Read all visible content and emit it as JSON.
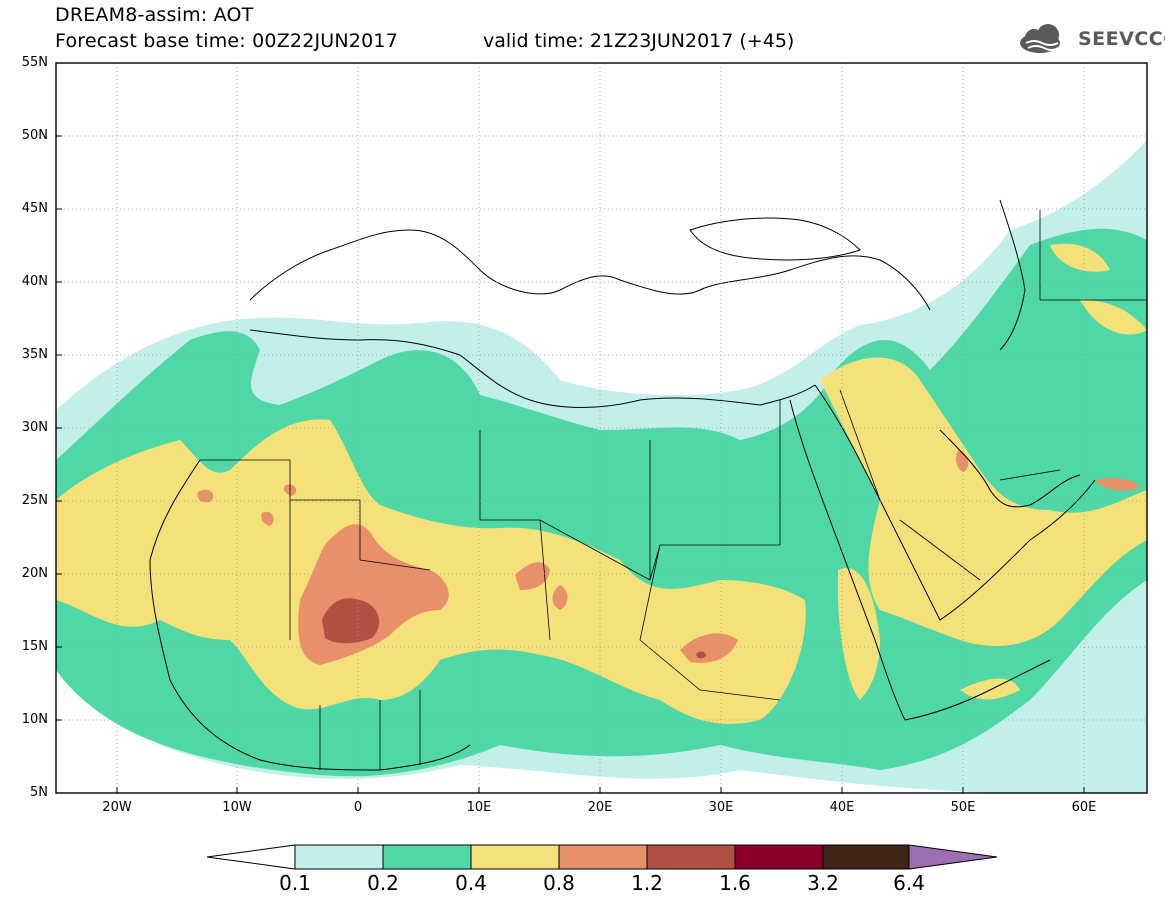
{
  "header": {
    "line1": "DREAM8-assim: AOT",
    "line2": "Forecast base time: 00Z22JUN2017",
    "valid": "valid time: 21Z23JUN2017 (+45)",
    "logo_text": "SEEVCCC"
  },
  "map": {
    "lon_range": [
      -25,
      65
    ],
    "lat_range": [
      5,
      55
    ],
    "lat_ticks": [
      "55N",
      "50N",
      "45N",
      "40N",
      "35N",
      "30N",
      "25N",
      "20N",
      "15N",
      "10N",
      "5N"
    ],
    "lon_ticks": [
      "20W",
      "10W",
      "0",
      "10E",
      "20E",
      "30E",
      "40E",
      "50E",
      "60E"
    ],
    "grid": true
  },
  "colorbar": {
    "labels": [
      "0.1",
      "0.2",
      "0.4",
      "0.8",
      "1.2",
      "1.6",
      "3.2",
      "6.4"
    ],
    "colors": [
      "#c2efe9",
      "#4fd8a5",
      "#f5e17a",
      "#e8906a",
      "#b05040",
      "#8a0028",
      "#3d2414",
      "#9b70b0"
    ],
    "underflow_color": "#ffffff"
  }
}
